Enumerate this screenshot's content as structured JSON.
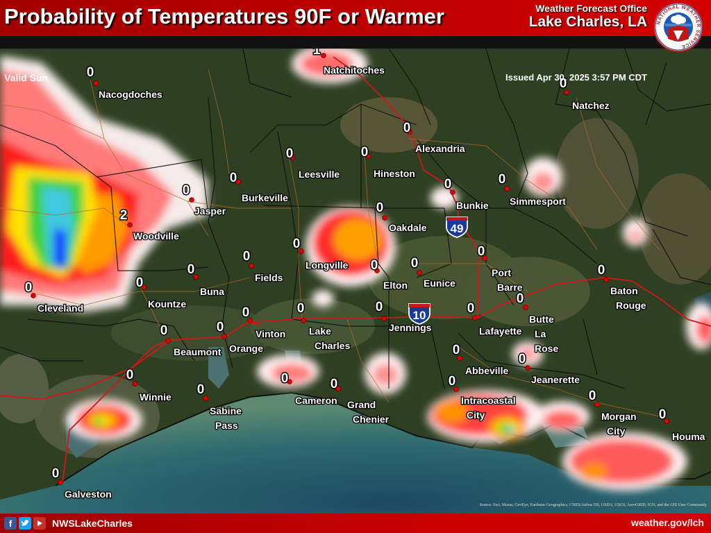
{
  "header": {
    "title": "Probability of Temperatures 90F or Warmer",
    "valid": "Valid Sun",
    "office_line1": "Weather Forecast Office",
    "office_line2": "Lake Charles, LA",
    "issued": "Issued Apr 30, 2025 3:57 PM CDT",
    "logo_text": "NATIONAL WEATHER SERVICE"
  },
  "footer": {
    "social_handle": "NWSLakeCharles",
    "website": "weather.gov/lch",
    "credits": "Source: Esri, Maxar, GeoEye, Earthstar Geographics, CNES/Airbus DS, USDA, USGS, AeroGRID, IGN, and the GIS User Community",
    "icons": [
      "facebook-icon",
      "twitter-icon",
      "youtube-icon"
    ]
  },
  "colors": {
    "header_red": "#b80000",
    "probability_low": "#ffffff",
    "probability_pink": "#f08080",
    "probability_red": "#ff2020",
    "probability_orange": "#ff9000",
    "probability_yellow": "#ffff00",
    "probability_green": "#22cc22",
    "probability_cyan": "#40c0e0",
    "probability_blue": "#0020ff",
    "city_dot": "#e00000",
    "interstate_shield": "#1a3a9a"
  },
  "highways": [
    "49",
    "10"
  ],
  "cities": [
    {
      "name": "Natchitoches",
      "value": "1"
    },
    {
      "name": "Nacogdoches",
      "value": "0"
    },
    {
      "name": "Natchez",
      "value": "0"
    },
    {
      "name": "Alexandria",
      "value": "0"
    },
    {
      "name": "Leesville",
      "value": "0"
    },
    {
      "name": "Hineston",
      "value": "0"
    },
    {
      "name": "Burkeville",
      "value": "0"
    },
    {
      "name": "Jasper",
      "value": "0"
    },
    {
      "name": "Bunkie",
      "value": "0"
    },
    {
      "name": "Simmesport",
      "value": "0"
    },
    {
      "name": "Woodville",
      "value": "2"
    },
    {
      "name": "Oakdale",
      "value": "0"
    },
    {
      "name": "Longville",
      "value": "0"
    },
    {
      "name": "Fields",
      "value": "0"
    },
    {
      "name": "Buna",
      "value": "0"
    },
    {
      "name": "Kountze",
      "value": "0"
    },
    {
      "name": "Cleveland",
      "value": "0"
    },
    {
      "name": "Elton",
      "value": "0"
    },
    {
      "name": "Eunice",
      "value": "0"
    },
    {
      "name": "Port Barre",
      "value": "0"
    },
    {
      "name": "Baton Rouge",
      "value": "0"
    },
    {
      "name": "Vinton",
      "value": "0"
    },
    {
      "name": "Lake Charles",
      "value": "0"
    },
    {
      "name": "Jennings",
      "value": "0"
    },
    {
      "name": "Lafayette",
      "value": "0"
    },
    {
      "name": "Butte La Rose",
      "value": "0"
    },
    {
      "name": "Beaumont",
      "value": "0"
    },
    {
      "name": "Orange",
      "value": "0"
    },
    {
      "name": "Abbeville",
      "value": "0"
    },
    {
      "name": "Jeanerette",
      "value": "0"
    },
    {
      "name": "Winnie",
      "value": "0"
    },
    {
      "name": "Sabine Pass",
      "value": "0"
    },
    {
      "name": "Cameron",
      "value": "0"
    },
    {
      "name": "Grand Chenier",
      "value": "0"
    },
    {
      "name": "Intracoastal City",
      "value": "0"
    },
    {
      "name": "Morgan City",
      "value": "0"
    },
    {
      "name": "Houma",
      "value": "0"
    },
    {
      "name": "Galveston",
      "value": "0"
    }
  ]
}
